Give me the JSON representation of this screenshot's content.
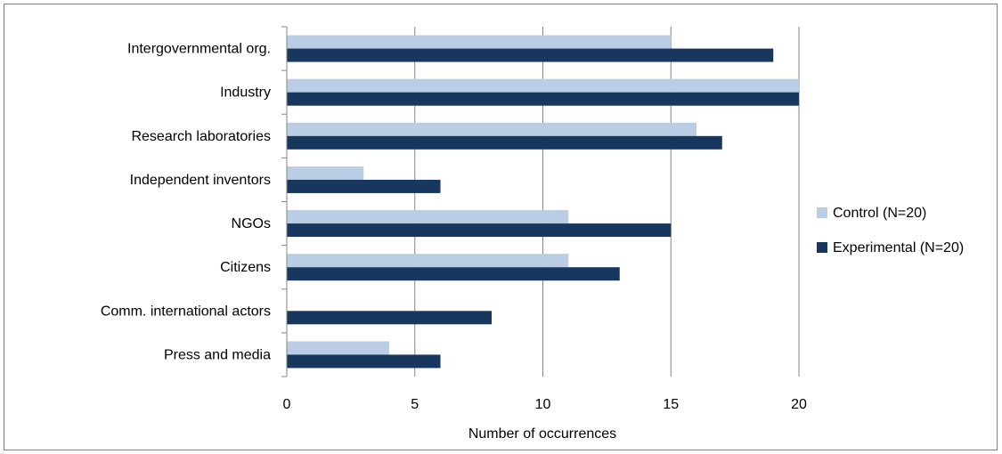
{
  "chart_data": {
    "type": "bar",
    "orientation": "horizontal",
    "categories": [
      "Intergovernmental org.",
      "Industry",
      "Research laboratories",
      "Independent inventors",
      "NGOs",
      "Citizens",
      "Comm. international actors",
      "Press and media"
    ],
    "series": [
      {
        "name": "Control (N=20)",
        "color": "#b9cde5",
        "values": [
          15,
          20,
          16,
          3,
          11,
          11,
          0,
          4
        ]
      },
      {
        "name": "Experimental (N=20)",
        "color": "#17375e",
        "values": [
          19,
          20,
          17,
          6,
          15,
          13,
          8,
          6
        ]
      }
    ],
    "xlabel": "Number of occurrences",
    "ylabel": "",
    "xlim": [
      0,
      20
    ],
    "xticks": [
      0,
      5,
      10,
      15,
      20
    ],
    "grid": "vertical",
    "legend_position": "right",
    "gridline_color": "#868686"
  }
}
